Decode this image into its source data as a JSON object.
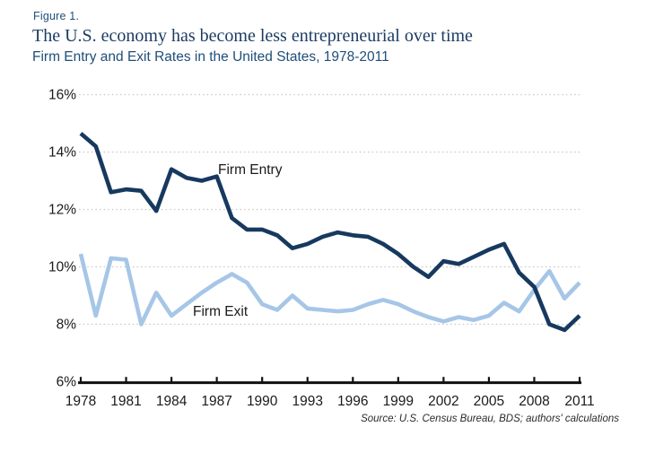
{
  "figure": {
    "label": "Figure 1.",
    "title": "The U.S. economy has become less entrepreneurial over time",
    "subtitle": "Firm Entry and Exit Rates in the United States, 1978-2011",
    "source": "Source: U.S. Census Bureau, BDS; authors' calculations"
  },
  "colors": {
    "entry_line": "#17395F",
    "exit_line": "#A6C6E7",
    "title_navy": "#1C3C64",
    "subtitle_blue": "#1F4E79",
    "axis_text": "#1a1a1a",
    "axis_line": "#111111",
    "gridline": "#C9C9C9",
    "background": "#FFFFFF"
  },
  "chart_data": {
    "type": "line",
    "title": "Firm Entry and Exit Rates in the United States, 1978-2011",
    "xlabel": "",
    "ylabel": "",
    "ylim": [
      6,
      16
    ],
    "grid": "horizontal dotted gridlines at each 2% step",
    "legend": "inline labels next to lines",
    "ytick_values": [
      6,
      8,
      10,
      12,
      14,
      16
    ],
    "ytick_labels": [
      "6%",
      "8%",
      "10%",
      "12%",
      "14%",
      "16%"
    ],
    "xtick_values": [
      1978,
      1981,
      1984,
      1987,
      1990,
      1993,
      1996,
      1999,
      2002,
      2005,
      2008,
      2011
    ],
    "xtick_labels": [
      "1978",
      "1981",
      "1984",
      "1987",
      "1990",
      "1993",
      "1996",
      "1999",
      "2002",
      "2005",
      "2008",
      "2011"
    ],
    "x": [
      1978,
      1979,
      1980,
      1981,
      1982,
      1983,
      1984,
      1985,
      1986,
      1987,
      1988,
      1989,
      1990,
      1991,
      1992,
      1993,
      1994,
      1995,
      1996,
      1997,
      1998,
      1999,
      2000,
      2001,
      2002,
      2003,
      2004,
      2005,
      2006,
      2007,
      2008,
      2009,
      2010,
      2011
    ],
    "series": [
      {
        "name": "Firm Entry",
        "label": "Firm Entry",
        "color": "#17395F",
        "values": [
          14.65,
          14.2,
          12.6,
          12.7,
          12.65,
          11.95,
          13.4,
          13.1,
          13.0,
          13.15,
          11.7,
          11.3,
          11.3,
          11.1,
          10.65,
          10.8,
          11.05,
          11.2,
          11.1,
          11.05,
          10.8,
          10.45,
          10.0,
          9.65,
          10.2,
          10.1,
          10.35,
          10.6,
          10.8,
          9.8,
          9.3,
          8.0,
          7.8,
          8.3
        ]
      },
      {
        "name": "Firm Exit",
        "label": "Firm Exit",
        "color": "#A6C6E7",
        "values": [
          10.45,
          8.3,
          10.3,
          10.25,
          8.0,
          9.1,
          8.3,
          8.7,
          9.1,
          9.45,
          9.75,
          9.45,
          8.7,
          8.5,
          9.0,
          8.55,
          8.5,
          8.45,
          8.5,
          8.7,
          8.85,
          8.7,
          8.45,
          8.25,
          8.1,
          8.25,
          8.15,
          8.3,
          8.75,
          8.45,
          9.2,
          9.85,
          8.9,
          9.45
        ]
      }
    ]
  }
}
